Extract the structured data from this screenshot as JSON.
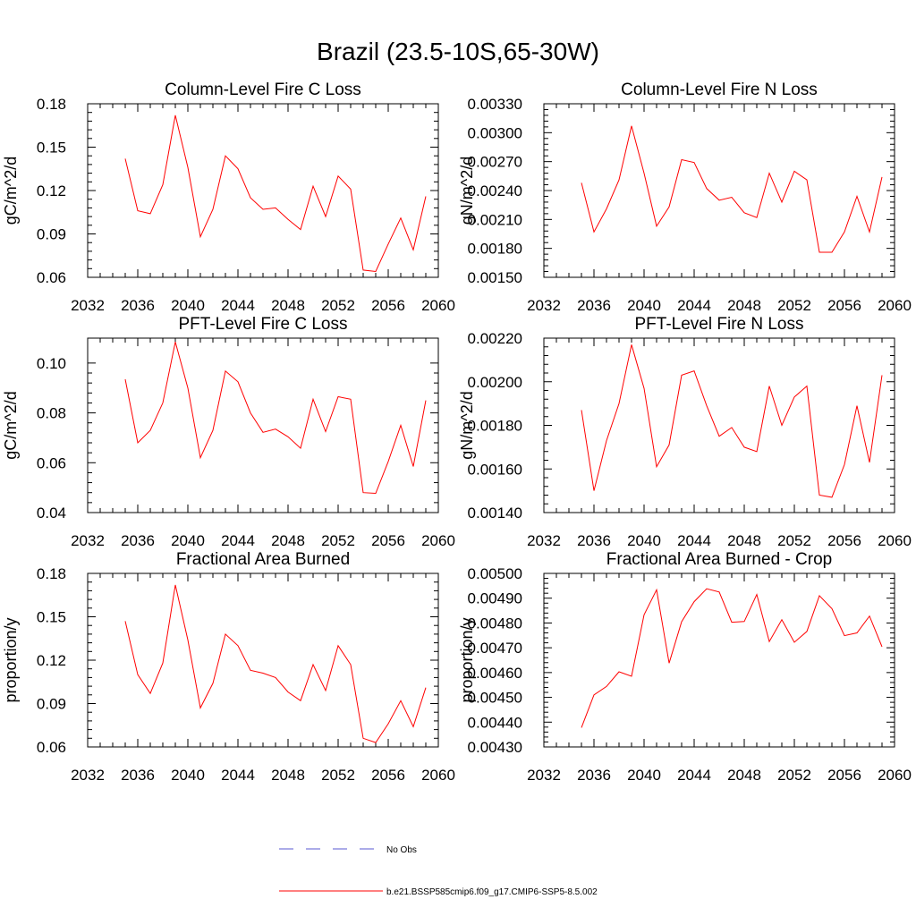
{
  "title": "Brazil (23.5-10S,65-30W)",
  "colors": {
    "model": "#ff0000",
    "obs": "#5a5ad0"
  },
  "legend": {
    "obs_label": "No Obs",
    "model_label": "b.e21.BSSP585cmip6.f09_g17.CMIP6-SSP5-8.5.002"
  },
  "chart_data": [
    {
      "type": "line",
      "title": "Column-Level Fire C Loss",
      "ylabel": "gC/m^2/d",
      "xlim": [
        2032,
        2060
      ],
      "ylim": [
        0.06,
        0.18
      ],
      "xticks": [
        2032,
        2036,
        2040,
        2044,
        2048,
        2052,
        2056,
        2060
      ],
      "xtick_labels": [
        "2032",
        "2036",
        "2040",
        "2044",
        "2048",
        "2052",
        "2056",
        "2060"
      ],
      "yticks": [
        0.06,
        0.09,
        0.12,
        0.15,
        0.18
      ],
      "ytick_labels": [
        "0.06",
        "0.09",
        "0.12",
        "0.15",
        "0.18"
      ],
      "x": [
        2035,
        2036,
        2037,
        2038,
        2039,
        2040,
        2041,
        2042,
        2043,
        2044,
        2045,
        2046,
        2047,
        2048,
        2049,
        2050,
        2051,
        2052,
        2053,
        2054,
        2055,
        2056,
        2057,
        2058,
        2059
      ],
      "series": [
        {
          "name": "b.e21.BSSP585cmip6.f09_g17.CMIP6-SSP5-8.5.002",
          "values": [
            0.142,
            0.106,
            0.104,
            0.124,
            0.172,
            0.136,
            0.088,
            0.107,
            0.144,
            0.135,
            0.115,
            0.107,
            0.108,
            0.1,
            0.093,
            0.123,
            0.102,
            0.13,
            0.121,
            0.065,
            0.064,
            0.083,
            0.101,
            0.079,
            0.116
          ]
        }
      ]
    },
    {
      "type": "line",
      "title": "Column-Level Fire N Loss",
      "ylabel": "gN/m^2/d",
      "xlim": [
        2032,
        2060
      ],
      "ylim": [
        0.0015,
        0.0033
      ],
      "xticks": [
        2032,
        2036,
        2040,
        2044,
        2048,
        2052,
        2056,
        2060
      ],
      "xtick_labels": [
        "2032",
        "2036",
        "2040",
        "2044",
        "2048",
        "2052",
        "2056",
        "2060"
      ],
      "yticks": [
        0.0015,
        0.0018,
        0.0021,
        0.0024,
        0.0027,
        0.003,
        0.0033
      ],
      "ytick_labels": [
        "0.00150",
        "0.00180",
        "0.00210",
        "0.00240",
        "0.00270",
        "0.00300",
        "0.00330"
      ],
      "x": [
        2035,
        2036,
        2037,
        2038,
        2039,
        2040,
        2041,
        2042,
        2043,
        2044,
        2045,
        2046,
        2047,
        2048,
        2049,
        2050,
        2051,
        2052,
        2053,
        2054,
        2055,
        2056,
        2057,
        2058,
        2059
      ],
      "series": [
        {
          "name": "b.e21.BSSP585cmip6.f09_g17.CMIP6-SSP5-8.5.002",
          "values": [
            0.00248,
            0.00197,
            0.00221,
            0.00251,
            0.00307,
            0.00258,
            0.00203,
            0.00223,
            0.00272,
            0.00269,
            0.00242,
            0.0023,
            0.00233,
            0.00217,
            0.00212,
            0.00258,
            0.00228,
            0.0026,
            0.00251,
            0.00176,
            0.00176,
            0.00197,
            0.00234,
            0.00197,
            0.00254
          ]
        }
      ]
    },
    {
      "type": "line",
      "title": "PFT-Level Fire C Loss",
      "ylabel": "gC/m^2/d",
      "xlim": [
        2032,
        2060
      ],
      "ylim": [
        0.04,
        0.11
      ],
      "xticks": [
        2032,
        2036,
        2040,
        2044,
        2048,
        2052,
        2056,
        2060
      ],
      "xtick_labels": [
        "2032",
        "2036",
        "2040",
        "2044",
        "2048",
        "2052",
        "2056",
        "2060"
      ],
      "yticks": [
        0.04,
        0.06,
        0.08,
        0.1
      ],
      "ytick_labels": [
        "0.04",
        "0.06",
        "0.08",
        "0.10"
      ],
      "x": [
        2035,
        2036,
        2037,
        2038,
        2039,
        2040,
        2041,
        2042,
        2043,
        2044,
        2045,
        2046,
        2047,
        2048,
        2049,
        2050,
        2051,
        2052,
        2053,
        2054,
        2055,
        2056,
        2057,
        2058,
        2059
      ],
      "series": [
        {
          "name": "b.e21.BSSP585cmip6.f09_g17.CMIP6-SSP5-8.5.002",
          "values": [
            0.0935,
            0.068,
            0.073,
            0.084,
            0.1085,
            0.09,
            0.062,
            0.073,
            0.0968,
            0.0925,
            0.08,
            0.0722,
            0.0735,
            0.0704,
            0.0658,
            0.0855,
            0.0725,
            0.0865,
            0.0855,
            0.048,
            0.0477,
            0.0605,
            0.075,
            0.0585,
            0.085
          ]
        }
      ]
    },
    {
      "type": "line",
      "title": "PFT-Level Fire N Loss",
      "ylabel": "gN/m^2/d",
      "xlim": [
        2032,
        2060
      ],
      "ylim": [
        0.0014,
        0.0022
      ],
      "xticks": [
        2032,
        2036,
        2040,
        2044,
        2048,
        2052,
        2056,
        2060
      ],
      "xtick_labels": [
        "2032",
        "2036",
        "2040",
        "2044",
        "2048",
        "2052",
        "2056",
        "2060"
      ],
      "yticks": [
        0.0014,
        0.0016,
        0.0018,
        0.002,
        0.0022
      ],
      "ytick_labels": [
        "0.00140",
        "0.00160",
        "0.00180",
        "0.00200",
        "0.00220"
      ],
      "x": [
        2035,
        2036,
        2037,
        2038,
        2039,
        2040,
        2041,
        2042,
        2043,
        2044,
        2045,
        2046,
        2047,
        2048,
        2049,
        2050,
        2051,
        2052,
        2053,
        2054,
        2055,
        2056,
        2057,
        2058,
        2059
      ],
      "series": [
        {
          "name": "b.e21.BSSP585cmip6.f09_g17.CMIP6-SSP5-8.5.002",
          "values": [
            0.00187,
            0.0015,
            0.00173,
            0.0019,
            0.00217,
            0.00197,
            0.00161,
            0.00171,
            0.00203,
            0.00205,
            0.00189,
            0.00175,
            0.00179,
            0.0017,
            0.00168,
            0.00198,
            0.0018,
            0.00193,
            0.00198,
            0.00148,
            0.00147,
            0.00162,
            0.00189,
            0.00163,
            0.00203
          ]
        }
      ]
    },
    {
      "type": "line",
      "title": "Fractional Area Burned",
      "ylabel": "proportion/y",
      "xlim": [
        2032,
        2060
      ],
      "ylim": [
        0.06,
        0.18
      ],
      "xticks": [
        2032,
        2036,
        2040,
        2044,
        2048,
        2052,
        2056,
        2060
      ],
      "xtick_labels": [
        "2032",
        "2036",
        "2040",
        "2044",
        "2048",
        "2052",
        "2056",
        "2060"
      ],
      "yticks": [
        0.06,
        0.09,
        0.12,
        0.15,
        0.18
      ],
      "ytick_labels": [
        "0.06",
        "0.09",
        "0.12",
        "0.15",
        "0.18"
      ],
      "x": [
        2035,
        2036,
        2037,
        2038,
        2039,
        2040,
        2041,
        2042,
        2043,
        2044,
        2045,
        2046,
        2047,
        2048,
        2049,
        2050,
        2051,
        2052,
        2053,
        2054,
        2055,
        2056,
        2057,
        2058,
        2059
      ],
      "series": [
        {
          "name": "b.e21.BSSP585cmip6.f09_g17.CMIP6-SSP5-8.5.002",
          "values": [
            0.147,
            0.11,
            0.097,
            0.118,
            0.172,
            0.134,
            0.087,
            0.104,
            0.138,
            0.13,
            0.113,
            0.111,
            0.108,
            0.098,
            0.092,
            0.117,
            0.099,
            0.13,
            0.117,
            0.066,
            0.063,
            0.076,
            0.092,
            0.074,
            0.101
          ]
        }
      ]
    },
    {
      "type": "line",
      "title": "Fractional Area Burned - Crop",
      "ylabel": "proportion/y",
      "xlim": [
        2032,
        2060
      ],
      "ylim": [
        0.0043,
        0.005
      ],
      "xticks": [
        2032,
        2036,
        2040,
        2044,
        2048,
        2052,
        2056,
        2060
      ],
      "xtick_labels": [
        "2032",
        "2036",
        "2040",
        "2044",
        "2048",
        "2052",
        "2056",
        "2060"
      ],
      "yticks": [
        0.0043,
        0.0044,
        0.0045,
        0.0046,
        0.0047,
        0.0048,
        0.0049,
        0.005
      ],
      "ytick_labels": [
        "0.00430",
        "0.00440",
        "0.00450",
        "0.00460",
        "0.00470",
        "0.00480",
        "0.00490",
        "0.00500"
      ],
      "x": [
        2035,
        2036,
        2037,
        2038,
        2039,
        2040,
        2041,
        2042,
        2043,
        2044,
        2045,
        2046,
        2047,
        2048,
        2049,
        2050,
        2051,
        2052,
        2053,
        2054,
        2055,
        2056,
        2057,
        2058,
        2059
      ],
      "series": [
        {
          "name": "b.e21.BSSP585cmip6.f09_g17.CMIP6-SSP5-8.5.002",
          "values": [
            0.004378,
            0.00451,
            0.004544,
            0.004603,
            0.004585,
            0.004833,
            0.004934,
            0.004638,
            0.004805,
            0.004886,
            0.004938,
            0.004925,
            0.004803,
            0.004806,
            0.004915,
            0.004725,
            0.004813,
            0.004722,
            0.004766,
            0.00491,
            0.004858,
            0.004749,
            0.00476,
            0.004828,
            0.004704
          ]
        }
      ]
    }
  ]
}
